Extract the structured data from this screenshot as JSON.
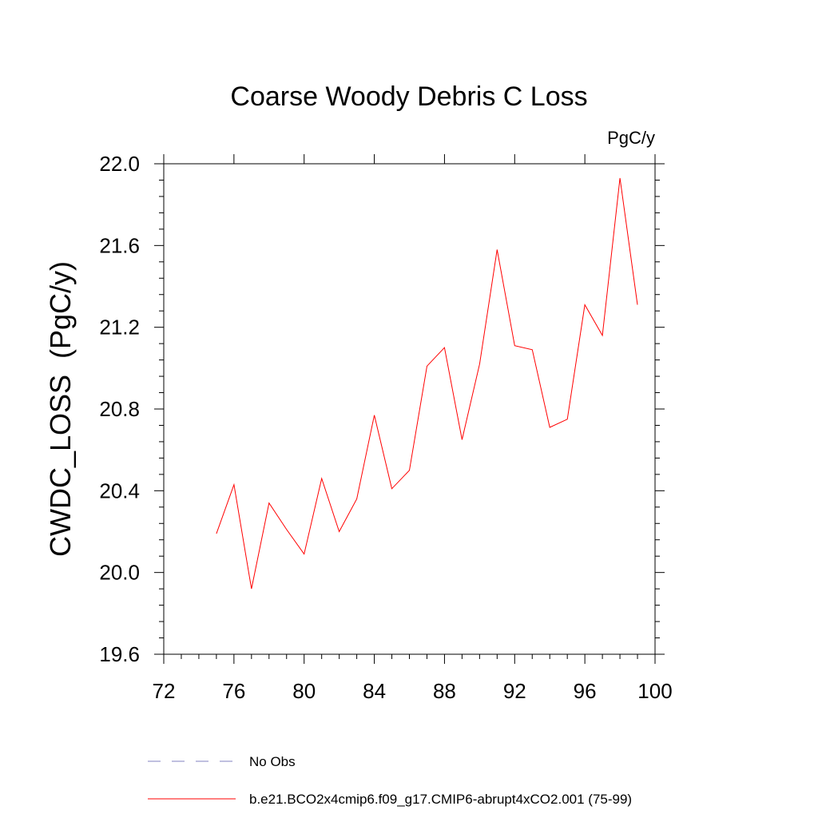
{
  "chart_data": {
    "type": "line",
    "title": "Coarse Woody Debris C Loss",
    "units_label": "PgC/y",
    "ylabel": "CWDC_LOSS  (PgC/y)",
    "xlabel": "",
    "xlim": [
      72,
      100
    ],
    "ylim": [
      19.6,
      22.0
    ],
    "x_ticks": [
      72,
      76,
      80,
      84,
      88,
      92,
      96,
      100
    ],
    "x_tick_labels": [
      "72",
      "76",
      "80",
      "84",
      "88",
      "92",
      "96",
      "100"
    ],
    "y_ticks": [
      19.6,
      20.0,
      20.4,
      20.8,
      21.2,
      21.6,
      22.0
    ],
    "y_tick_labels": [
      "19.6",
      "20.0",
      "20.4",
      "20.8",
      "21.2",
      "21.6",
      "22.0"
    ],
    "grid": false,
    "legend_position": "bottom",
    "series": [
      {
        "name": "b.e21.BCO2x4cmip6.f09_g17.CMIP6-abrupt4xCO2.001 (75-99)",
        "color": "#ff0000",
        "x": [
          75,
          76,
          77,
          78,
          79,
          80,
          81,
          82,
          83,
          84,
          85,
          86,
          87,
          88,
          89,
          90,
          91,
          92,
          93,
          94,
          95,
          96,
          97,
          98,
          99
        ],
        "y": [
          20.19,
          20.43,
          19.92,
          20.34,
          20.21,
          20.09,
          20.46,
          20.2,
          20.36,
          20.77,
          20.41,
          20.5,
          21.01,
          21.1,
          20.65,
          21.02,
          21.58,
          21.11,
          21.09,
          20.71,
          20.75,
          21.31,
          21.16,
          21.93,
          21.31
        ]
      }
    ],
    "legend": [
      {
        "label": "No Obs",
        "style": "dashed",
        "color": "#8080c0"
      },
      {
        "label": "b.e21.BCO2x4cmip6.f09_g17.CMIP6-abrupt4xCO2.001 (75-99)",
        "style": "solid",
        "color": "#ff0000"
      }
    ]
  }
}
